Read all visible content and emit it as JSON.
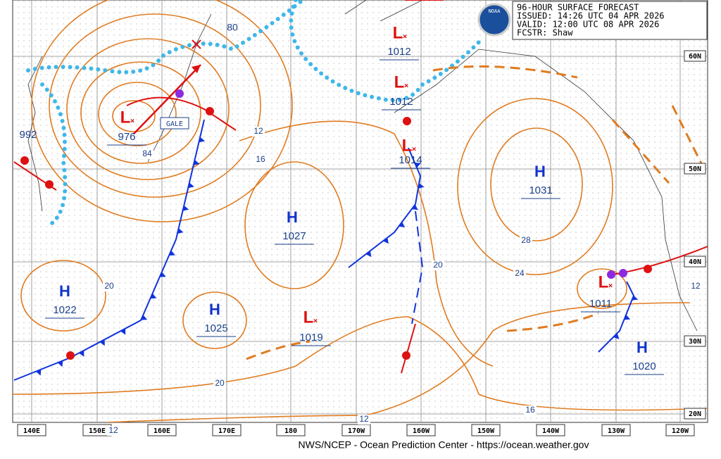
{
  "header": {
    "lines": [
      "96-HOUR SURFACE FORECAST",
      "ISSUED: 14:26 UTC 04 APR 2026",
      "VALID:  12:00 UTC 08 APR 2026",
      "FCSTR:  Shaw"
    ]
  },
  "logo": "NOAA",
  "systems": [
    {
      "type": "L",
      "pressure": "1012"
    },
    {
      "type": "L",
      "pressure": "1012"
    },
    {
      "type": "L",
      "pressure": "976"
    },
    {
      "type": "L",
      "pressure": "1014"
    },
    {
      "type": "H",
      "pressure": "1031"
    },
    {
      "type": "H",
      "pressure": "1027"
    },
    {
      "type": "H",
      "pressure": "1022"
    },
    {
      "type": "H",
      "pressure": "1025"
    },
    {
      "type": "L",
      "pressure": "1019"
    },
    {
      "type": "L",
      "pressure": "1011"
    },
    {
      "type": "H",
      "pressure": "1020"
    }
  ],
  "pressure_labels": [
    "992"
  ],
  "gale": "GALE",
  "wind": "80",
  "isobar_labels": [
    "84",
    "12",
    "16",
    "28",
    "24",
    "20",
    "20",
    "20",
    "12",
    "16",
    "12",
    "12"
  ],
  "lat_labels": [
    "60N",
    "50N",
    "40N",
    "30N",
    "20N"
  ],
  "lon_labels": [
    "140E",
    "150E",
    "160E",
    "170E",
    "180",
    "170W",
    "160W",
    "150W",
    "140W",
    "130W",
    "120W"
  ],
  "footer": "NWS/NCEP - Ocean Prediction Center - https://ocean.weather.gov"
}
